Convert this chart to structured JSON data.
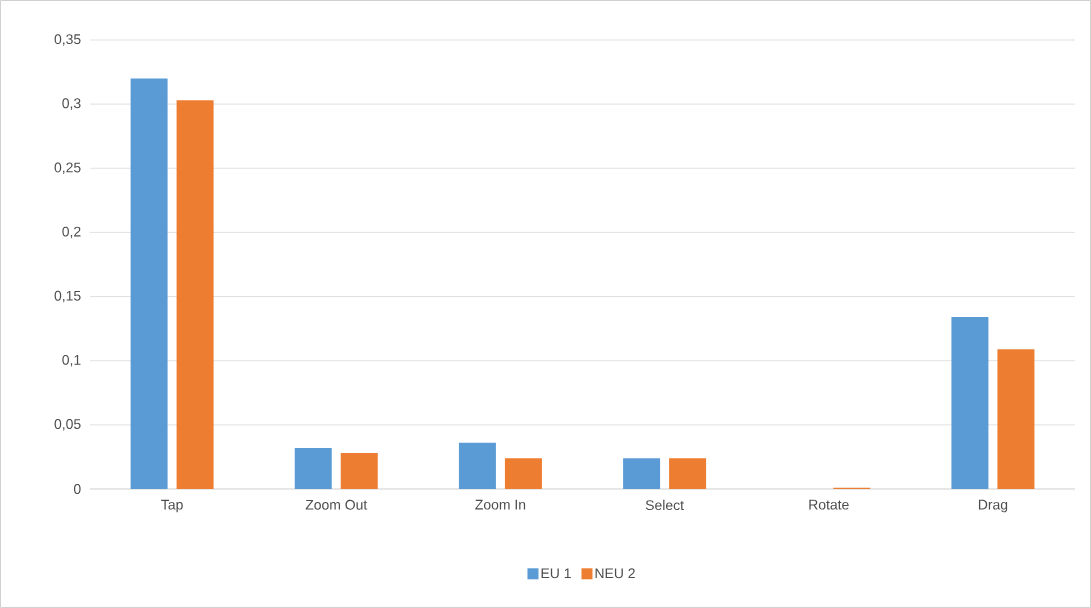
{
  "chart_data": {
    "type": "bar",
    "categories": [
      "Tap",
      "Zoom Out",
      "Zoom In",
      "Select",
      "Rotate",
      "Drag"
    ],
    "series": [
      {
        "name": "EU 1",
        "color": "#5b9bd5",
        "values": [
          0.32,
          0.032,
          0.036,
          0.024,
          0,
          0.134
        ]
      },
      {
        "name": "NEU 2",
        "color": "#ed7d31",
        "values": [
          0.303,
          0.028,
          0.024,
          0.024,
          0.001,
          0.109
        ]
      }
    ],
    "ylim": [
      0,
      0.35
    ],
    "yticks": [
      0,
      {
        "value": 0.05,
        "label": "0,05"
      },
      {
        "value": 0.1,
        "label": "0,1"
      },
      {
        "value": 0.15,
        "label": "0,15"
      },
      {
        "value": 0.2,
        "label": "0,2"
      },
      {
        "value": 0.25,
        "label": "0,25"
      },
      {
        "value": 0.3,
        "label": "0,3"
      },
      {
        "value": 0.35,
        "label": "0,35"
      }
    ],
    "grid": "y",
    "legend": "bottom"
  }
}
